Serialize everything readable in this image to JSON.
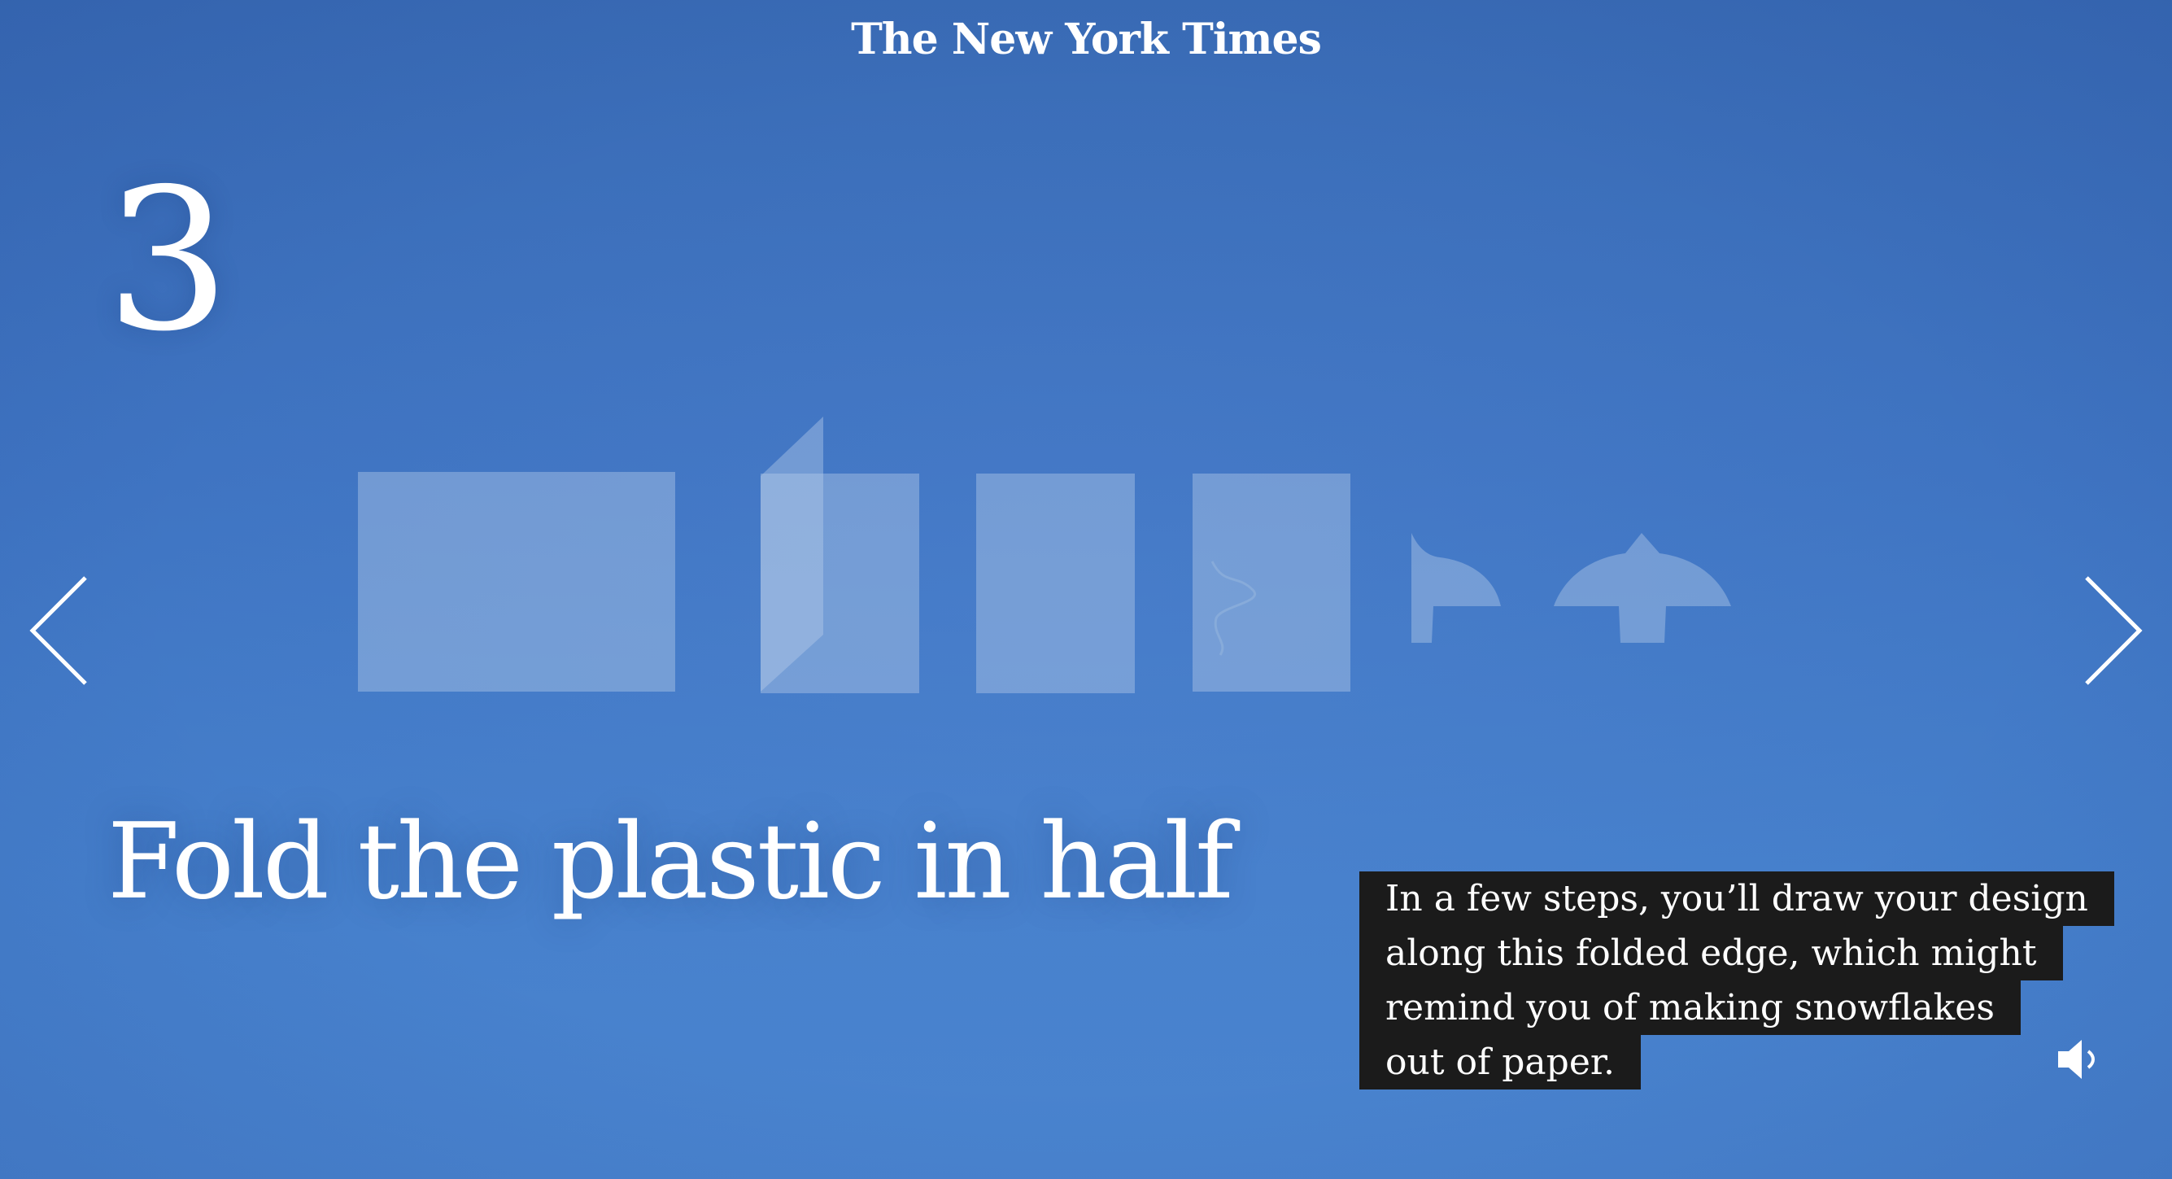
{
  "masthead": {
    "logo_text": "The New York Times"
  },
  "step": {
    "number": "3",
    "title": "Fold the plastic in half"
  },
  "caption": {
    "lines": [
      "In a few steps, you’ll draw your design",
      "along this folded edge, which might",
      "remind you of making snowflakes",
      "out of paper."
    ]
  },
  "icons": {
    "prev": "chevron-left-icon",
    "next": "chevron-right-icon",
    "sound": "speaker-icon",
    "logo": "nyt-logo"
  },
  "colors": {
    "background": "#3f74c2",
    "caption_bg": "#1b1b1b",
    "text": "#ffffff"
  }
}
